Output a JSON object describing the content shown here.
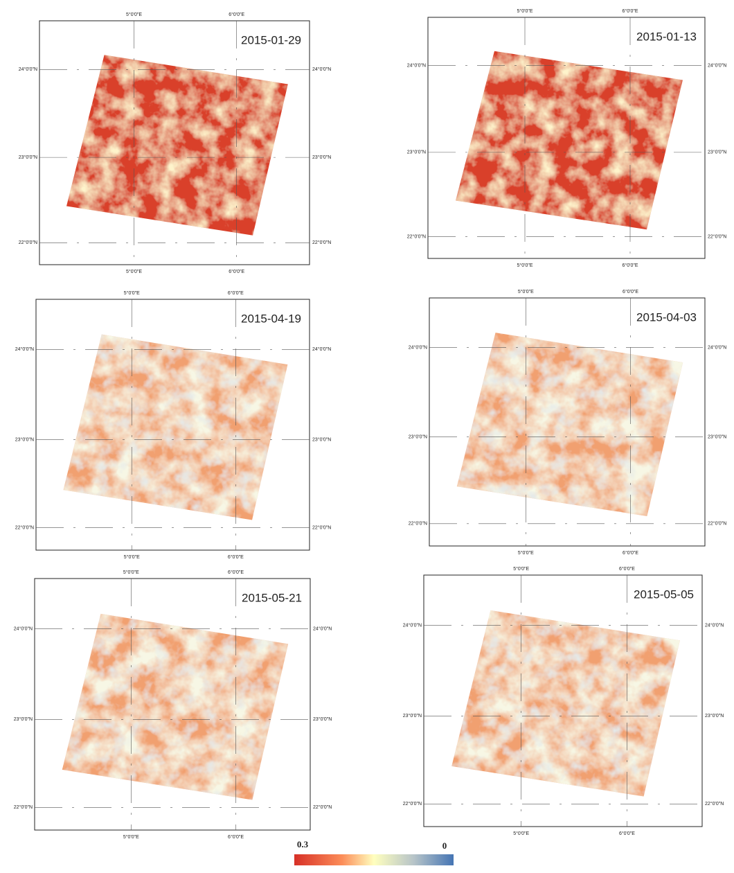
{
  "panels": [
    {
      "date": "2015-01-29",
      "lon_labels": [
        "5°0'0\"E",
        "6°0'0\"E"
      ],
      "lat_labels": [
        "24°0'0\"N",
        "23°0'0\"N",
        "22°0'0\"N"
      ]
    },
    {
      "date": "2015-01-13",
      "lon_labels": [
        "5°0'0\"E",
        "6°0'0\"E"
      ],
      "lat_labels": [
        "24°0'0\"N",
        "23°0'0\"N",
        "22°0'0\"N"
      ]
    },
    {
      "date": "2015-04-19",
      "lon_labels": [
        "5°0'0\"E",
        "6°0'0\"E"
      ],
      "lat_labels": [
        "24°0'0\"N",
        "23°0'0\"N",
        "22°0'0\"N"
      ]
    },
    {
      "date": "2015-04-03",
      "lon_labels": [
        "5°0'0\"E",
        "6°0'0\"E"
      ],
      "lat_labels": [
        "24°0'0\"N",
        "23°0'0\"N",
        "22°0'0\"N"
      ]
    },
    {
      "date": "2015-05-21",
      "lon_labels": [
        "5°0'0\"E",
        "6°0'0\"E"
      ],
      "lat_labels": [
        "24°0'0\"N",
        "23°0'0\"N",
        "22°0'0\"N"
      ]
    },
    {
      "date": "2015-05-05",
      "lon_labels": [
        "5°0'0\"E",
        "6°0'0\"E"
      ],
      "lat_labels": [
        "24°0'0\"N",
        "23°0'0\"N",
        "22°0'0\"N"
      ]
    }
  ],
  "legend": {
    "high": "0.3",
    "low": "0"
  }
}
